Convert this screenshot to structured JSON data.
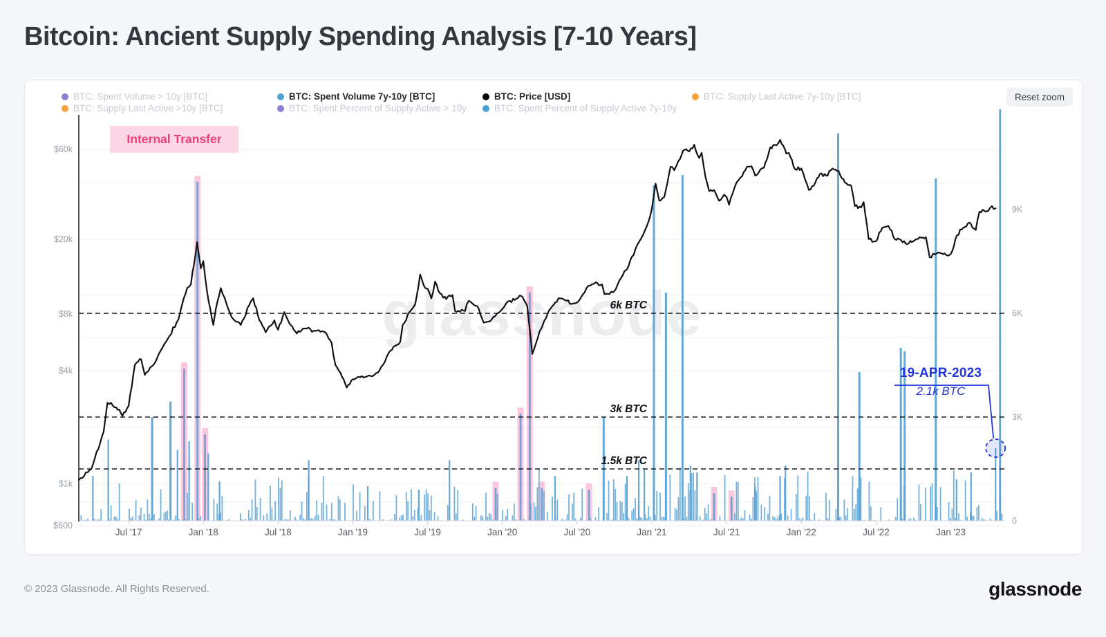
{
  "page": {
    "title": "Bitcoin: Ancient Supply Spending Analysis [7-10 Years]",
    "footer_copyright": "© 2023 Glassnode. All Rights Reserved.",
    "brand": "glassnode",
    "watermark": "glassnode"
  },
  "toolbar": {
    "reset_zoom_label": "Reset zoom"
  },
  "legend": {
    "rows": [
      [
        {
          "label": "BTC: Spent Volume > 10y [BTC]",
          "color": "#8b7fd0",
          "active": false
        },
        {
          "label": "BTC: Spent Volume 7y-10y [BTC]",
          "color": "#4da0d6",
          "active": true
        },
        {
          "label": "BTC: Price [USD]",
          "color": "#000000",
          "active": true
        },
        {
          "label": "BTC: Supply Last Active 7y-10y [BTC]",
          "color": "#f6a13c",
          "active": false
        }
      ],
      [
        {
          "label": "BTC: Supply Last Active >10y [BTC]",
          "color": "#f6a13c",
          "active": false
        },
        {
          "label": "BTC: Spent Percent of Supply Active > 10y",
          "color": "#8b7fd0",
          "active": false
        },
        {
          "label": "BTC: Spent Percent of Supply Active 7y-10y",
          "color": "#4da0d6",
          "active": false
        }
      ]
    ]
  },
  "annotations": {
    "internal_transfer": {
      "label": "Internal Transfer",
      "bg": "#fcd7e6",
      "color": "#f23f78"
    }
  },
  "chart_data": {
    "type": "mixed: bar (spent volume, right axis, linear) + line (price, left axis, log)",
    "title": "Bitcoin: Ancient Supply Spending Analysis [7-10 Years]",
    "x_axis": {
      "domain": [
        "2017-03",
        "2023-05"
      ],
      "ticks": [
        {
          "label": "Jul '17",
          "date": "2017-07-01"
        },
        {
          "label": "Jan '18",
          "date": "2018-01-01"
        },
        {
          "label": "Jul '18",
          "date": "2018-07-01"
        },
        {
          "label": "Jan '19",
          "date": "2019-01-01"
        },
        {
          "label": "Jul '19",
          "date": "2019-07-01"
        },
        {
          "label": "Jan '20",
          "date": "2020-01-01"
        },
        {
          "label": "Jul '20",
          "date": "2020-07-01"
        },
        {
          "label": "Jan '21",
          "date": "2021-01-01"
        },
        {
          "label": "Jul '21",
          "date": "2021-07-01"
        },
        {
          "label": "Jan '22",
          "date": "2022-01-01"
        },
        {
          "label": "Jul '22",
          "date": "2022-07-01"
        },
        {
          "label": "Jan '23",
          "date": "2023-01-01"
        }
      ]
    },
    "left_axis": {
      "series": "BTC: Price [USD]",
      "scale": "log",
      "labels": [
        {
          "text": "$60k",
          "usd": 60000
        },
        {
          "text": "$20k",
          "usd": 20000
        },
        {
          "text": "$8k",
          "usd": 8000
        },
        {
          "text": "$4k",
          "usd": 4000
        },
        {
          "text": "$1k",
          "usd": 1000
        },
        {
          "text": "$600",
          "usd": 600
        }
      ],
      "gridline_usd": [
        60000,
        40000,
        20000,
        10000,
        8000,
        6000,
        4000,
        2000,
        1000,
        800,
        600
      ]
    },
    "right_axis": {
      "series": "BTC: Spent Volume 7y-10y [BTC]",
      "scale": "linear",
      "labels": [
        {
          "text": "9K",
          "btc": 9000
        },
        {
          "text": "6K",
          "btc": 6000
        },
        {
          "text": "3K",
          "btc": 3000
        },
        {
          "text": "0",
          "btc": 0
        }
      ]
    },
    "thresholds": [
      {
        "label": "6k BTC",
        "btc": 6000
      },
      {
        "label": "3k BTC",
        "btc": 3000
      },
      {
        "label": "1.5k BTC",
        "btc": 1500
      }
    ],
    "price_usd_k": {
      "name": "BTC: Price [USD]",
      "unit": "thousand USD",
      "x_unit": "months since 2017-03",
      "points": [
        [
          0,
          1.05
        ],
        [
          1,
          1.2
        ],
        [
          2,
          1.9
        ],
        [
          2.3,
          2.7
        ],
        [
          3,
          2.55
        ],
        [
          3.5,
          2.3
        ],
        [
          4,
          2.6
        ],
        [
          4.5,
          4.3
        ],
        [
          5,
          4.6
        ],
        [
          5.3,
          3.8
        ],
        [
          6,
          4.3
        ],
        [
          7,
          5.7
        ],
        [
          8,
          7.5
        ],
        [
          8.7,
          11.0
        ],
        [
          9,
          11.5
        ],
        [
          9.5,
          19.3
        ],
        [
          9.8,
          14.0
        ],
        [
          10,
          15.3
        ],
        [
          10.3,
          10.5
        ],
        [
          10.8,
          7.0
        ],
        [
          11,
          8.5
        ],
        [
          11.4,
          11.0
        ],
        [
          12,
          8.5
        ],
        [
          12.5,
          7.4
        ],
        [
          13,
          7.0
        ],
        [
          13.8,
          9.3
        ],
        [
          14,
          9.7
        ],
        [
          14.5,
          7.4
        ],
        [
          15,
          6.4
        ],
        [
          15.7,
          7.4
        ],
        [
          16,
          6.6
        ],
        [
          16.5,
          8.2
        ],
        [
          17,
          7.0
        ],
        [
          17.5,
          6.3
        ],
        [
          18,
          6.7
        ],
        [
          19,
          6.5
        ],
        [
          19.8,
          6.4
        ],
        [
          20.3,
          5.6
        ],
        [
          20.6,
          4.3
        ],
        [
          21,
          3.9
        ],
        [
          21.5,
          3.25
        ],
        [
          22,
          3.6
        ],
        [
          23,
          3.7
        ],
        [
          24,
          3.9
        ],
        [
          25,
          5.1
        ],
        [
          25.8,
          5.7
        ],
        [
          26,
          7.0
        ],
        [
          26.8,
          8.6
        ],
        [
          27,
          9.0
        ],
        [
          27.4,
          13.0
        ],
        [
          27.8,
          11.0
        ],
        [
          28,
          10.9
        ],
        [
          28.3,
          9.7
        ],
        [
          28.6,
          11.9
        ],
        [
          29,
          10.3
        ],
        [
          29.5,
          9.6
        ],
        [
          30,
          10.1
        ],
        [
          30.2,
          8.3
        ],
        [
          31,
          8.3
        ],
        [
          31.3,
          9.4
        ],
        [
          32,
          8.8
        ],
        [
          32.5,
          7.2
        ],
        [
          33,
          7.3
        ],
        [
          34,
          8.5
        ],
        [
          34.6,
          9.4
        ],
        [
          35,
          9.5
        ],
        [
          35.5,
          10.0
        ],
        [
          36,
          8.8
        ],
        [
          36.4,
          4.9
        ],
        [
          37,
          6.5
        ],
        [
          37.5,
          7.6
        ],
        [
          38,
          8.8
        ],
        [
          38.5,
          9.7
        ],
        [
          39,
          9.5
        ],
        [
          39.7,
          9.1
        ],
        [
          40,
          9.2
        ],
        [
          40.9,
          11.3
        ],
        [
          41.5,
          11.8
        ],
        [
          42,
          11.5
        ],
        [
          42.2,
          10.2
        ],
        [
          43,
          10.6
        ],
        [
          43.8,
          13.5
        ],
        [
          44,
          13.8
        ],
        [
          44.8,
          18.5
        ],
        [
          45,
          19.5
        ],
        [
          45.6,
          23.5
        ],
        [
          46,
          29.0
        ],
        [
          46.3,
          39.5
        ],
        [
          46.6,
          32.0
        ],
        [
          47,
          33.5
        ],
        [
          47.5,
          48.5
        ],
        [
          47.8,
          46.5
        ],
        [
          48,
          49.5
        ],
        [
          48.5,
          59.0
        ],
        [
          49,
          58.5
        ],
        [
          49.4,
          63.5
        ],
        [
          49.8,
          54.0
        ],
        [
          50,
          57.5
        ],
        [
          50.3,
          43.0
        ],
        [
          50.6,
          36.0
        ],
        [
          51,
          36.5
        ],
        [
          51.4,
          32.0
        ],
        [
          51.8,
          34.5
        ],
        [
          52,
          33.5
        ],
        [
          52.2,
          30.5
        ],
        [
          52.8,
          40.0
        ],
        [
          53,
          41.5
        ],
        [
          53.5,
          46.5
        ],
        [
          53.8,
          48.5
        ],
        [
          54,
          48.8
        ],
        [
          54.3,
          43.5
        ],
        [
          55,
          48.0
        ],
        [
          55.5,
          61.5
        ],
        [
          56,
          63.0
        ],
        [
          56.3,
          67.5
        ],
        [
          56.8,
          57.0
        ],
        [
          57,
          57.5
        ],
        [
          57.5,
          47.0
        ],
        [
          58,
          47.5
        ],
        [
          58.3,
          41.5
        ],
        [
          58.6,
          36.5
        ],
        [
          59,
          38.5
        ],
        [
          59.5,
          44.5
        ],
        [
          60,
          43.5
        ],
        [
          60.5,
          47.5
        ],
        [
          61,
          46.0
        ],
        [
          61.5,
          40.0
        ],
        [
          62,
          38.5
        ],
        [
          62.3,
          30.0
        ],
        [
          62.8,
          29.5
        ],
        [
          63,
          31.5
        ],
        [
          63.4,
          20.0
        ],
        [
          64,
          19.5
        ],
        [
          64.5,
          23.0
        ],
        [
          65,
          23.5
        ],
        [
          65.5,
          20.0
        ],
        [
          66,
          19.8
        ],
        [
          66.5,
          18.8
        ],
        [
          67,
          19.5
        ],
        [
          67.5,
          20.5
        ],
        [
          68,
          20.5
        ],
        [
          68.3,
          16.0
        ],
        [
          69,
          17.0
        ],
        [
          69.5,
          16.8
        ],
        [
          70,
          16.7
        ],
        [
          70.5,
          21.0
        ],
        [
          71,
          23.0
        ],
        [
          71.5,
          24.5
        ],
        [
          72,
          22.4
        ],
        [
          72.3,
          28.0
        ],
        [
          72.8,
          28.0
        ],
        [
          73,
          28.3
        ],
        [
          73.3,
          30.0
        ],
        [
          73.6,
          29.2
        ]
      ]
    },
    "spent_volume_7y10y": {
      "name": "BTC: Spent Volume 7y-10y [BTC]",
      "unit": "BTC",
      "spikes": [
        {
          "date": "2017-04-05",
          "btc": 1300
        },
        {
          "date": "2017-05-12",
          "btc": 2350
        },
        {
          "date": "2017-08-28",
          "btc": 3000
        },
        {
          "date": "2017-10-12",
          "btc": 3450
        },
        {
          "date": "2017-10-29",
          "btc": 2050
        },
        {
          "date": "2017-11-27",
          "btc": 2300
        },
        {
          "date": "2018-01-13",
          "btc": 1950
        },
        {
          "date": "2018-02-10",
          "btc": 1150
        },
        {
          "date": "2018-09-15",
          "btc": 1750
        },
        {
          "date": "2019-02-07",
          "btc": 1000
        },
        {
          "date": "2019-06-10",
          "btc": 900
        },
        {
          "date": "2019-08-24",
          "btc": 1750
        },
        {
          "date": "2020-05-08",
          "btc": 1300
        },
        {
          "date": "2020-09-05",
          "btc": 3000
        },
        {
          "date": "2020-11-01",
          "btc": 1300
        },
        {
          "date": "2020-11-30",
          "btc": 1750
        },
        {
          "date": "2020-12-13",
          "btc": 1500
        },
        {
          "date": "2021-01-06",
          "btc": 9700
        },
        {
          "date": "2021-02-05",
          "btc": 6600
        },
        {
          "date": "2021-03-15",
          "btc": 10000
        },
        {
          "date": "2021-04-04",
          "btc": 1600
        },
        {
          "date": "2021-04-20",
          "btc": 1400
        },
        {
          "date": "2021-09-10",
          "btc": 1000
        },
        {
          "date": "2021-11-10",
          "btc": 1300
        },
        {
          "date": "2021-11-23",
          "btc": 1600
        },
        {
          "date": "2022-03-30",
          "btc": 11200
        },
        {
          "date": "2022-05-21",
          "btc": 4300
        },
        {
          "date": "2022-08-31",
          "btc": 5000
        },
        {
          "date": "2022-09-10",
          "btc": 4900
        },
        {
          "date": "2022-11-25",
          "btc": 9900
        },
        {
          "date": "2023-01-15",
          "btc": 1200
        },
        {
          "date": "2023-02-20",
          "btc": 1400
        },
        {
          "date": "2023-04-19",
          "btc": 2100
        },
        {
          "date": "2023-04-30",
          "btc": 11900
        }
      ],
      "baseline_noise": {
        "note": "dense small daily spikes along the bottom",
        "max_btc": 1300
      }
    },
    "internal_transfers": {
      "label": "Internal Transfer",
      "highlight_color": "rgba(247,156,196,0.55)",
      "events": [
        {
          "date": "2017-11-15",
          "btc": 4400
        },
        {
          "date": "2017-12-17",
          "btc": 9800
        },
        {
          "date": "2018-01-05",
          "btc": 2500
        },
        {
          "date": "2019-12-15",
          "btc": 950
        },
        {
          "date": "2020-02-15",
          "btc": 3100
        },
        {
          "date": "2020-03-07",
          "btc": 6600
        },
        {
          "date": "2020-04-06",
          "btc": 950
        },
        {
          "date": "2020-07-30",
          "btc": 900
        },
        {
          "date": "2021-06-01",
          "btc": 800
        },
        {
          "date": "2021-07-13",
          "btc": 700
        }
      ]
    },
    "highlighted_event": {
      "label_date": "19-APR-2023",
      "label_value": "2.1k BTC",
      "date": "2023-04-19",
      "btc": 2100,
      "color": "#2036d9"
    }
  }
}
